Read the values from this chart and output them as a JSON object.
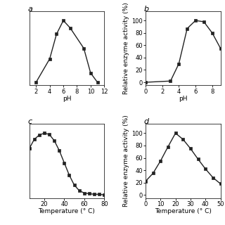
{
  "panel_a": {
    "label": "a",
    "x": [
      2,
      4,
      5,
      6,
      7,
      9,
      10,
      11
    ],
    "y": [
      0,
      38,
      78,
      100,
      88,
      55,
      15,
      0
    ],
    "xlabel": "pH",
    "ylabel": "",
    "xlim": [
      1,
      12
    ],
    "ylim": [
      -5,
      115
    ],
    "xticks": [
      2,
      4,
      6,
      8,
      10,
      12
    ],
    "yticks": []
  },
  "panel_b": {
    "label": "b",
    "x": [
      0,
      3,
      4,
      5,
      6,
      7,
      8,
      9
    ],
    "y": [
      0,
      2,
      30,
      87,
      100,
      98,
      80,
      55
    ],
    "xlabel": "pH",
    "ylabel": "Relative enzyme activity (%)",
    "xlim": [
      0,
      9
    ],
    "ylim": [
      -5,
      115
    ],
    "xticks": [
      0,
      2,
      4,
      6,
      8
    ],
    "yticks": [
      0,
      20,
      40,
      60,
      80,
      100
    ]
  },
  "panel_c": {
    "label": "c",
    "x": [
      5,
      10,
      15,
      20,
      25,
      30,
      35,
      40,
      45,
      50,
      55,
      60,
      65,
      70,
      75,
      80
    ],
    "y": [
      75,
      90,
      97,
      100,
      98,
      88,
      72,
      52,
      32,
      16,
      7,
      3,
      2,
      1,
      1,
      0
    ],
    "xlabel": "Temperature (° C)",
    "ylabel": "",
    "xlim": [
      5,
      80
    ],
    "ylim": [
      -5,
      115
    ],
    "xticks": [
      20,
      40,
      60,
      80
    ],
    "yticks": []
  },
  "panel_d": {
    "label": "d",
    "x": [
      0,
      5,
      10,
      15,
      20,
      25,
      30,
      35,
      40,
      45,
      50
    ],
    "y": [
      22,
      35,
      55,
      78,
      100,
      90,
      75,
      58,
      42,
      28,
      18
    ],
    "xlabel": "Temperature (° C)",
    "ylabel": "Relative enzyme activity (%)",
    "xlim": [
      0,
      50
    ],
    "ylim": [
      -5,
      115
    ],
    "xticks": [
      0,
      10,
      20,
      30,
      40,
      50
    ],
    "yticks": [
      0,
      20,
      40,
      60,
      80,
      100
    ]
  },
  "line_color": "#222222",
  "marker": "s",
  "markersize": 2.5,
  "linewidth": 1.0,
  "fontsize_label": 6.5,
  "fontsize_tick": 6,
  "fontsize_panel": 8,
  "bg_color": "#ffffff"
}
